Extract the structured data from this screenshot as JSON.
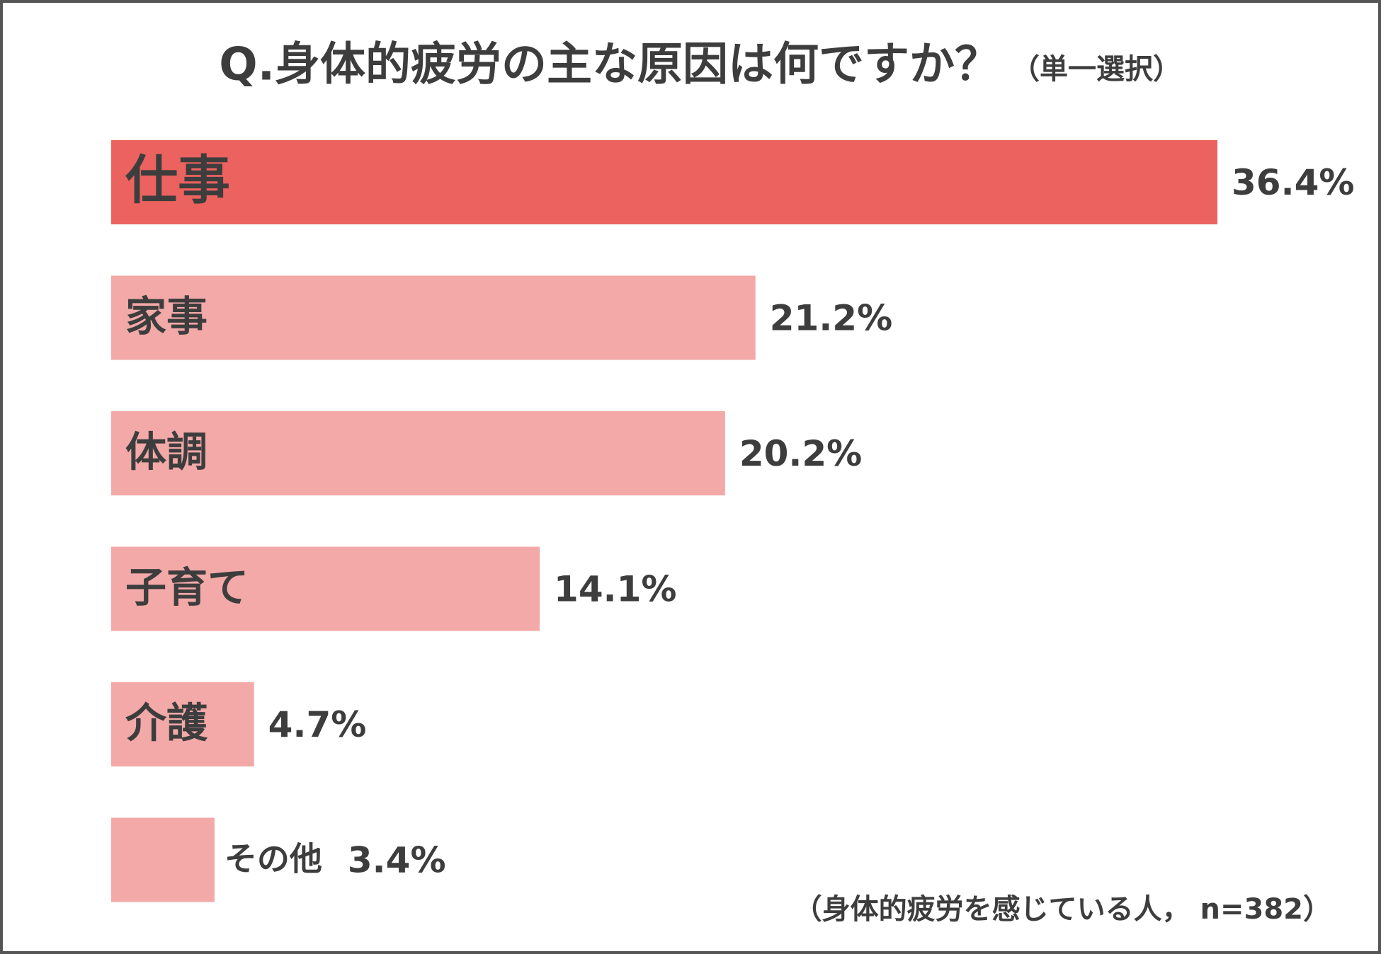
{
  "chart_data": {
    "type": "bar",
    "orientation": "horizontal",
    "title": "Q.身体的疲労の主な原因は何ですか？",
    "subtitle": "（単一選択）",
    "note": "（身体的疲労を感じている人， n=382）",
    "categories": [
      "仕事",
      "家事",
      "体調",
      "子育て",
      "介護",
      "その他"
    ],
    "values": [
      36.4,
      21.2,
      20.2,
      14.1,
      4.7,
      3.4
    ],
    "value_labels": [
      "36.4%",
      "21.2%",
      "20.2%",
      "14.1%",
      "4.7%",
      "3.4%"
    ],
    "colors": [
      "#ec625f",
      "#f2a9a8",
      "#f2a9a8",
      "#f2a9a8",
      "#f2a9a8",
      "#f2a9a8"
    ]
  }
}
